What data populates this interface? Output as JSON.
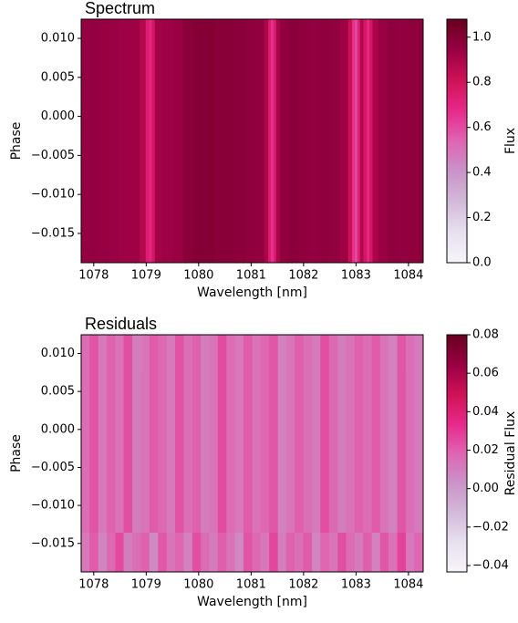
{
  "chart_data": [
    {
      "type": "heatmap",
      "title": "Spectrum",
      "x_label": "Wavelength [nm]",
      "y_label": "Phase",
      "colorbar_label": "Flux",
      "x": [
        1077.8,
        1078.0,
        1078.2,
        1078.4,
        1078.6,
        1078.8,
        1078.95,
        1079.03,
        1079.08,
        1079.13,
        1079.2,
        1079.4,
        1079.6,
        1079.8,
        1080.0,
        1080.2,
        1080.4,
        1080.6,
        1080.8,
        1081.0,
        1081.2,
        1081.3,
        1081.35,
        1081.4,
        1081.45,
        1081.5,
        1081.6,
        1081.8,
        1082.0,
        1082.2,
        1082.4,
        1082.6,
        1082.8,
        1082.9,
        1082.95,
        1083.0,
        1083.05,
        1083.1,
        1083.18,
        1083.23,
        1083.28,
        1083.35,
        1083.5,
        1083.7,
        1083.9,
        1084.1,
        1084.25
      ],
      "values": [
        0.95,
        0.96,
        0.95,
        0.94,
        0.93,
        0.93,
        0.88,
        0.74,
        0.7,
        0.78,
        0.92,
        0.93,
        0.94,
        0.99,
        1.0,
        1.0,
        0.99,
        0.99,
        0.98,
        0.97,
        0.96,
        0.9,
        0.75,
        0.66,
        0.74,
        0.9,
        0.96,
        0.98,
        0.97,
        0.96,
        0.97,
        0.96,
        0.93,
        0.82,
        0.66,
        0.6,
        0.72,
        0.88,
        0.78,
        0.68,
        0.78,
        0.9,
        0.94,
        0.97,
        0.96,
        0.97,
        0.98
      ],
      "xlim": [
        1077.76,
        1084.28
      ],
      "ylim": [
        -0.01875,
        0.01246
      ],
      "xticks": [
        1078,
        1079,
        1080,
        1081,
        1082,
        1083,
        1084
      ],
      "yticks": [
        {
          "value": 0.01,
          "label": "0.010"
        },
        {
          "value": 0.005,
          "label": "0.005"
        },
        {
          "value": 0,
          "label": "0.000"
        },
        {
          "value": -0.005,
          "label": "−0.005"
        },
        {
          "value": -0.01,
          "label": "−0.010"
        },
        {
          "value": -0.015,
          "label": "−0.015"
        }
      ],
      "clim": [
        0,
        1.08
      ],
      "cticks": [
        {
          "value": 0,
          "label": "0.0"
        },
        0.2,
        0.4,
        0.6,
        0.8,
        {
          "value": 1,
          "label": "1.0"
        }
      ],
      "colormap": [
        "#f7f4f9",
        "#e7e1ef",
        "#d4b9da",
        "#c994c7",
        "#df65b0",
        "#e7298a",
        "#ce1256",
        "#980043",
        "#67001f"
      ]
    },
    {
      "type": "heatmap",
      "title": "Residuals",
      "x_label": "Wavelength [nm]",
      "y_label": "Phase",
      "colorbar_label": "Residual Flux",
      "x": [
        1077.84,
        1078.0,
        1078.17,
        1078.33,
        1078.49,
        1078.65,
        1078.82,
        1078.98,
        1079.14,
        1079.31,
        1079.47,
        1079.63,
        1079.8,
        1079.96,
        1080.12,
        1080.28,
        1080.45,
        1080.61,
        1080.77,
        1080.94,
        1081.1,
        1081.26,
        1081.43,
        1081.59,
        1081.75,
        1081.91,
        1082.08,
        1082.24,
        1082.4,
        1082.57,
        1082.73,
        1082.89,
        1083.05,
        1083.22,
        1083.38,
        1083.54,
        1083.7,
        1083.87,
        1084.03,
        1084.19
      ],
      "y": [
        0.00986,
        0.00466,
        -0.00054,
        -0.00574,
        -0.01094,
        -0.01614
      ],
      "values": [
        [
          0.012,
          0.021,
          0.008,
          0.017,
          0.025,
          0.01,
          0.015,
          0.019,
          0.006,
          0.022,
          0.013,
          0.018,
          0.009,
          0.024,
          0.016,
          0.011,
          0.02,
          0.014,
          0.007,
          0.023,
          0.017,
          0.012,
          0.026,
          0.01,
          0.019,
          0.015,
          0.021,
          0.008,
          0.018,
          0.013,
          0.024,
          0.016,
          0.011,
          0.02,
          0.009,
          0.022,
          0.014,
          0.027,
          0.012,
          0.018
        ],
        [
          0.018,
          0.009,
          0.023,
          0.014,
          0.011,
          0.02,
          0.007,
          0.016,
          0.024,
          0.012,
          0.019,
          0.01,
          0.021,
          0.015,
          0.008,
          0.025,
          0.013,
          0.018,
          0.022,
          0.011,
          0.016,
          0.02,
          0.009,
          0.023,
          0.014,
          0.017,
          0.01,
          0.024,
          0.012,
          0.019,
          0.015,
          0.008,
          0.021,
          0.013,
          0.026,
          0.011,
          0.018,
          0.014,
          0.022,
          0.016
        ],
        [
          0.014,
          0.019,
          0.011,
          0.024,
          0.008,
          0.017,
          0.022,
          0.012,
          0.018,
          0.009,
          0.025,
          0.015,
          0.013,
          0.02,
          0.023,
          0.01,
          0.016,
          0.021,
          0.012,
          0.018,
          0.007,
          0.024,
          0.014,
          0.019,
          0.011,
          0.022,
          0.016,
          0.013,
          0.02,
          0.009,
          0.017,
          0.023,
          0.012,
          0.018,
          0.015,
          0.021,
          0.01,
          0.019,
          0.013,
          0.025
        ],
        [
          0.021,
          0.013,
          0.017,
          0.01,
          0.022,
          0.015,
          0.012,
          0.026,
          0.014,
          0.019,
          0.008,
          0.021,
          0.017,
          0.011,
          0.019,
          0.024,
          0.009,
          0.013,
          0.02,
          0.016,
          0.023,
          0.01,
          0.018,
          0.012,
          0.025,
          0.009,
          0.019,
          0.015,
          0.011,
          0.022,
          0.013,
          0.018,
          0.024,
          0.01,
          0.016,
          0.012,
          0.023,
          0.009,
          0.017,
          0.02
        ],
        [
          0.009,
          0.016,
          0.022,
          0.013,
          0.018,
          0.011,
          0.024,
          0.017,
          0.01,
          0.015,
          0.021,
          0.012,
          0.026,
          0.009,
          0.014,
          0.018,
          0.022,
          0.011,
          0.016,
          0.013,
          0.02,
          0.015,
          0.011,
          0.025,
          0.017,
          0.012,
          0.023,
          0.018,
          0.014,
          0.01,
          0.021,
          0.019,
          0.015,
          0.023,
          0.012,
          0.017,
          0.02,
          0.011,
          0.024,
          0.014
        ],
        [
          0.016,
          0.023,
          0.012,
          0.019,
          0.014,
          0.024,
          0.01,
          0.013,
          0.021,
          0.017,
          0.011,
          0.023,
          0.015,
          0.019,
          0.01,
          0.013,
          0.025,
          0.016,
          0.012,
          0.021,
          0.014,
          0.018,
          0.022,
          0.009,
          0.013,
          0.02,
          0.015,
          0.011,
          0.024,
          0.017,
          0.01,
          0.014,
          0.019,
          0.016,
          0.021,
          0.013,
          0.009,
          0.022,
          0.015,
          0.011
        ]
      ],
      "xlim": [
        1077.76,
        1084.28
      ],
      "ylim": [
        -0.01875,
        0.01246
      ],
      "xticks": [
        1078,
        1079,
        1080,
        1081,
        1082,
        1083,
        1084
      ],
      "yticks": [
        {
          "value": 0.01,
          "label": "0.010"
        },
        {
          "value": 0.005,
          "label": "0.005"
        },
        {
          "value": 0,
          "label": "0.000"
        },
        {
          "value": -0.005,
          "label": "−0.005"
        },
        {
          "value": -0.01,
          "label": "−0.010"
        },
        {
          "value": -0.015,
          "label": "−0.015"
        }
      ],
      "clim": [
        -0.0433,
        0.08
      ],
      "cticks": [
        {
          "value": -0.04,
          "label": "−0.04"
        },
        {
          "value": -0.02,
          "label": "−0.02"
        },
        {
          "value": 0,
          "label": "0.00"
        },
        0.02,
        0.04,
        0.06,
        0.08
      ],
      "colormap": [
        "#f7f4f9",
        "#e7e1ef",
        "#d4b9da",
        "#c994c7",
        "#df65b0",
        "#e7298a",
        "#ce1256",
        "#980043",
        "#67001f"
      ]
    }
  ]
}
